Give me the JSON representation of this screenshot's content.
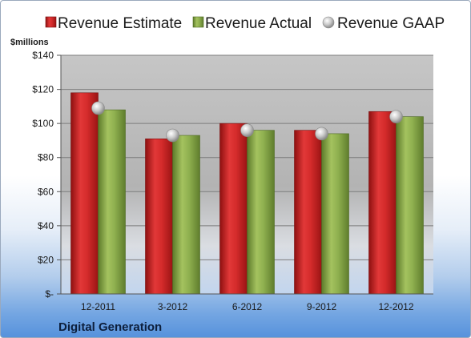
{
  "chart_data": {
    "type": "bar",
    "categories": [
      "12-2011",
      "3-2012",
      "6-2012",
      "9-2012",
      "12-2012"
    ],
    "series": [
      {
        "name": "Revenue Estimate",
        "values": [
          118,
          91,
          100,
          96,
          107
        ],
        "color": "#d42b2b"
      },
      {
        "name": "Revenue Actual",
        "values": [
          108,
          93,
          96,
          94,
          104
        ],
        "color": "#8fb04f"
      },
      {
        "name": "Revenue GAAP",
        "values": [
          109,
          93,
          96,
          94,
          104
        ],
        "color": "#c4c4c4"
      }
    ],
    "ylabel": "$millions",
    "ylim": [
      0,
      140
    ],
    "yticks": [
      {
        "value": 140,
        "label": "$140"
      },
      {
        "value": 120,
        "label": "$120"
      },
      {
        "value": 100,
        "label": "$100"
      },
      {
        "value": 80,
        "label": "$80"
      },
      {
        "value": 60,
        "label": "$60"
      },
      {
        "value": 40,
        "label": "$40"
      },
      {
        "value": 20,
        "label": "$20"
      },
      {
        "value": 0,
        "label": "$-"
      }
    ],
    "legend_position": "top",
    "grid": true,
    "footer_title": "Digital Generation"
  }
}
